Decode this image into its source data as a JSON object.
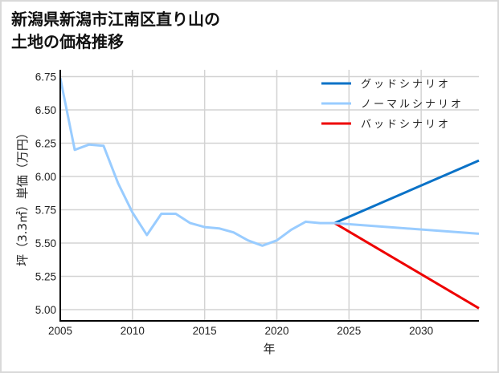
{
  "title": {
    "line1": "新潟県新潟市江南区直り山の",
    "line2": "土地の価格推移"
  },
  "colors": {
    "good": "#0a72c7",
    "normal": "#99ccff",
    "bad": "#ee0000",
    "grid": "#d3d3d3",
    "axis": "#000000"
  },
  "chart_data": {
    "type": "line",
    "title": "新潟県新潟市江南区直り山の土地の価格推移",
    "xlabel": "年",
    "ylabel": "坪（3.3㎡）単価（万円）",
    "xlim": [
      2005,
      2034
    ],
    "ylim": [
      4.93,
      6.76
    ],
    "x_ticks": [
      "2005",
      "2010",
      "2015",
      "2020",
      "2025",
      "2030"
    ],
    "y_ticks": [
      "5.00",
      "5.25",
      "5.50",
      "5.75",
      "6.00",
      "6.25",
      "6.50",
      "6.75"
    ],
    "grid": true,
    "legend_position": "upper right",
    "series": [
      {
        "name": "ノーマルシナリオ",
        "color": "#99ccff",
        "x": [
          2005,
          2006,
          2007,
          2008,
          2009,
          2010,
          2011,
          2012,
          2013,
          2014,
          2015,
          2016,
          2017,
          2018,
          2019,
          2020,
          2021,
          2022,
          2023,
          2024,
          2034
        ],
        "values": [
          6.74,
          6.2,
          6.24,
          6.23,
          5.95,
          5.73,
          5.56,
          5.72,
          5.72,
          5.65,
          5.62,
          5.61,
          5.58,
          5.52,
          5.48,
          5.52,
          5.6,
          5.66,
          5.65,
          5.65,
          5.57
        ]
      },
      {
        "name": "グッドシナリオ",
        "color": "#0a72c7",
        "x": [
          2024,
          2034
        ],
        "values": [
          5.65,
          6.12
        ]
      },
      {
        "name": "バッドシナリオ",
        "color": "#ee0000",
        "x": [
          2024,
          2034
        ],
        "values": [
          5.65,
          5.01
        ]
      }
    ]
  },
  "legend": [
    {
      "label": "グッドシナリオ",
      "color": "#0a72c7"
    },
    {
      "label": "ノーマルシナリオ",
      "color": "#99ccff"
    },
    {
      "label": "バッドシナリオ",
      "color": "#ee0000"
    }
  ]
}
